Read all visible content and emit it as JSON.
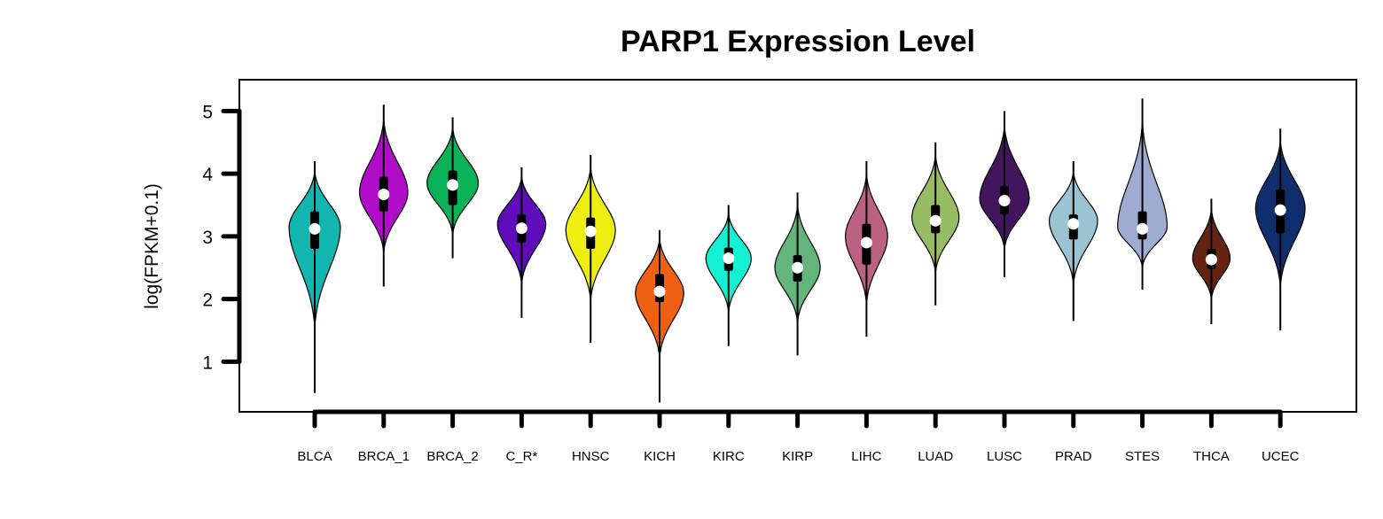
{
  "chart_data": {
    "type": "violin",
    "title": "PARP1 Expression Level",
    "ylabel": "log(FPKM+0.1)",
    "xlabel": "",
    "ylim": [
      0.2,
      5.5
    ],
    "yticks": [
      1,
      2,
      3,
      4,
      5
    ],
    "legend": "none",
    "grid": false,
    "categories": [
      "BLCA",
      "BRCA_1",
      "BRCA_2",
      "C_R*",
      "HNSC",
      "KICH",
      "KIRC",
      "KIRP",
      "LIHC",
      "LUAD",
      "LUSC",
      "PRAD",
      "STES",
      "THCA",
      "UCEC"
    ],
    "series": [
      {
        "color": "#13B5B1",
        "min": 0.5,
        "q1": 2.8,
        "median": 3.12,
        "q3": 3.4,
        "max": 4.2,
        "mode": 3.15,
        "width": 0.85
      },
      {
        "color": "#B10DC9",
        "min": 2.2,
        "q1": 3.4,
        "median": 3.67,
        "q3": 3.95,
        "max": 5.1,
        "mode": 3.7,
        "width": 0.8
      },
      {
        "color": "#0BB156",
        "min": 2.65,
        "q1": 3.5,
        "median": 3.82,
        "q3": 4.05,
        "max": 4.9,
        "mode": 3.85,
        "width": 0.85
      },
      {
        "color": "#5E0DB8",
        "min": 1.7,
        "q1": 2.9,
        "median": 3.13,
        "q3": 3.35,
        "max": 4.1,
        "mode": 3.2,
        "width": 0.8
      },
      {
        "color": "#EEEE11",
        "min": 1.3,
        "q1": 2.8,
        "median": 3.08,
        "q3": 3.3,
        "max": 4.3,
        "mode": 3.1,
        "width": 0.82
      },
      {
        "color": "#F06014",
        "min": 0.35,
        "q1": 1.95,
        "median": 2.12,
        "q3": 2.4,
        "max": 3.1,
        "mode": 2.1,
        "width": 0.8
      },
      {
        "color": "#14F0D2",
        "min": 1.25,
        "q1": 2.45,
        "median": 2.65,
        "q3": 2.82,
        "max": 3.5,
        "mode": 2.65,
        "width": 0.75
      },
      {
        "color": "#63B57C",
        "min": 1.1,
        "q1": 2.28,
        "median": 2.5,
        "q3": 2.7,
        "max": 3.7,
        "mode": 2.5,
        "width": 0.75
      },
      {
        "color": "#BC6181",
        "min": 1.4,
        "q1": 2.55,
        "median": 2.9,
        "q3": 3.2,
        "max": 4.2,
        "mode": 3.0,
        "width": 0.7
      },
      {
        "color": "#98BC63",
        "min": 1.9,
        "q1": 3.05,
        "median": 3.25,
        "q3": 3.5,
        "max": 4.5,
        "mode": 3.3,
        "width": 0.78
      },
      {
        "color": "#43155F",
        "min": 2.35,
        "q1": 3.35,
        "median": 3.57,
        "q3": 3.8,
        "max": 5.0,
        "mode": 3.6,
        "width": 0.82
      },
      {
        "color": "#9CC3D2",
        "min": 1.65,
        "q1": 2.95,
        "median": 3.2,
        "q3": 3.35,
        "max": 4.2,
        "mode": 3.25,
        "width": 0.8
      },
      {
        "color": "#9DACD0",
        "min": 2.15,
        "q1": 2.95,
        "median": 3.12,
        "q3": 3.4,
        "max": 5.2,
        "mode": 3.15,
        "width": 0.82
      },
      {
        "color": "#652413",
        "min": 1.6,
        "q1": 2.48,
        "median": 2.63,
        "q3": 2.8,
        "max": 3.6,
        "mode": 2.65,
        "width": 0.62
      },
      {
        "color": "#102E6C",
        "min": 1.5,
        "q1": 3.05,
        "median": 3.42,
        "q3": 3.75,
        "max": 4.72,
        "mode": 3.45,
        "width": 0.82
      }
    ]
  }
}
